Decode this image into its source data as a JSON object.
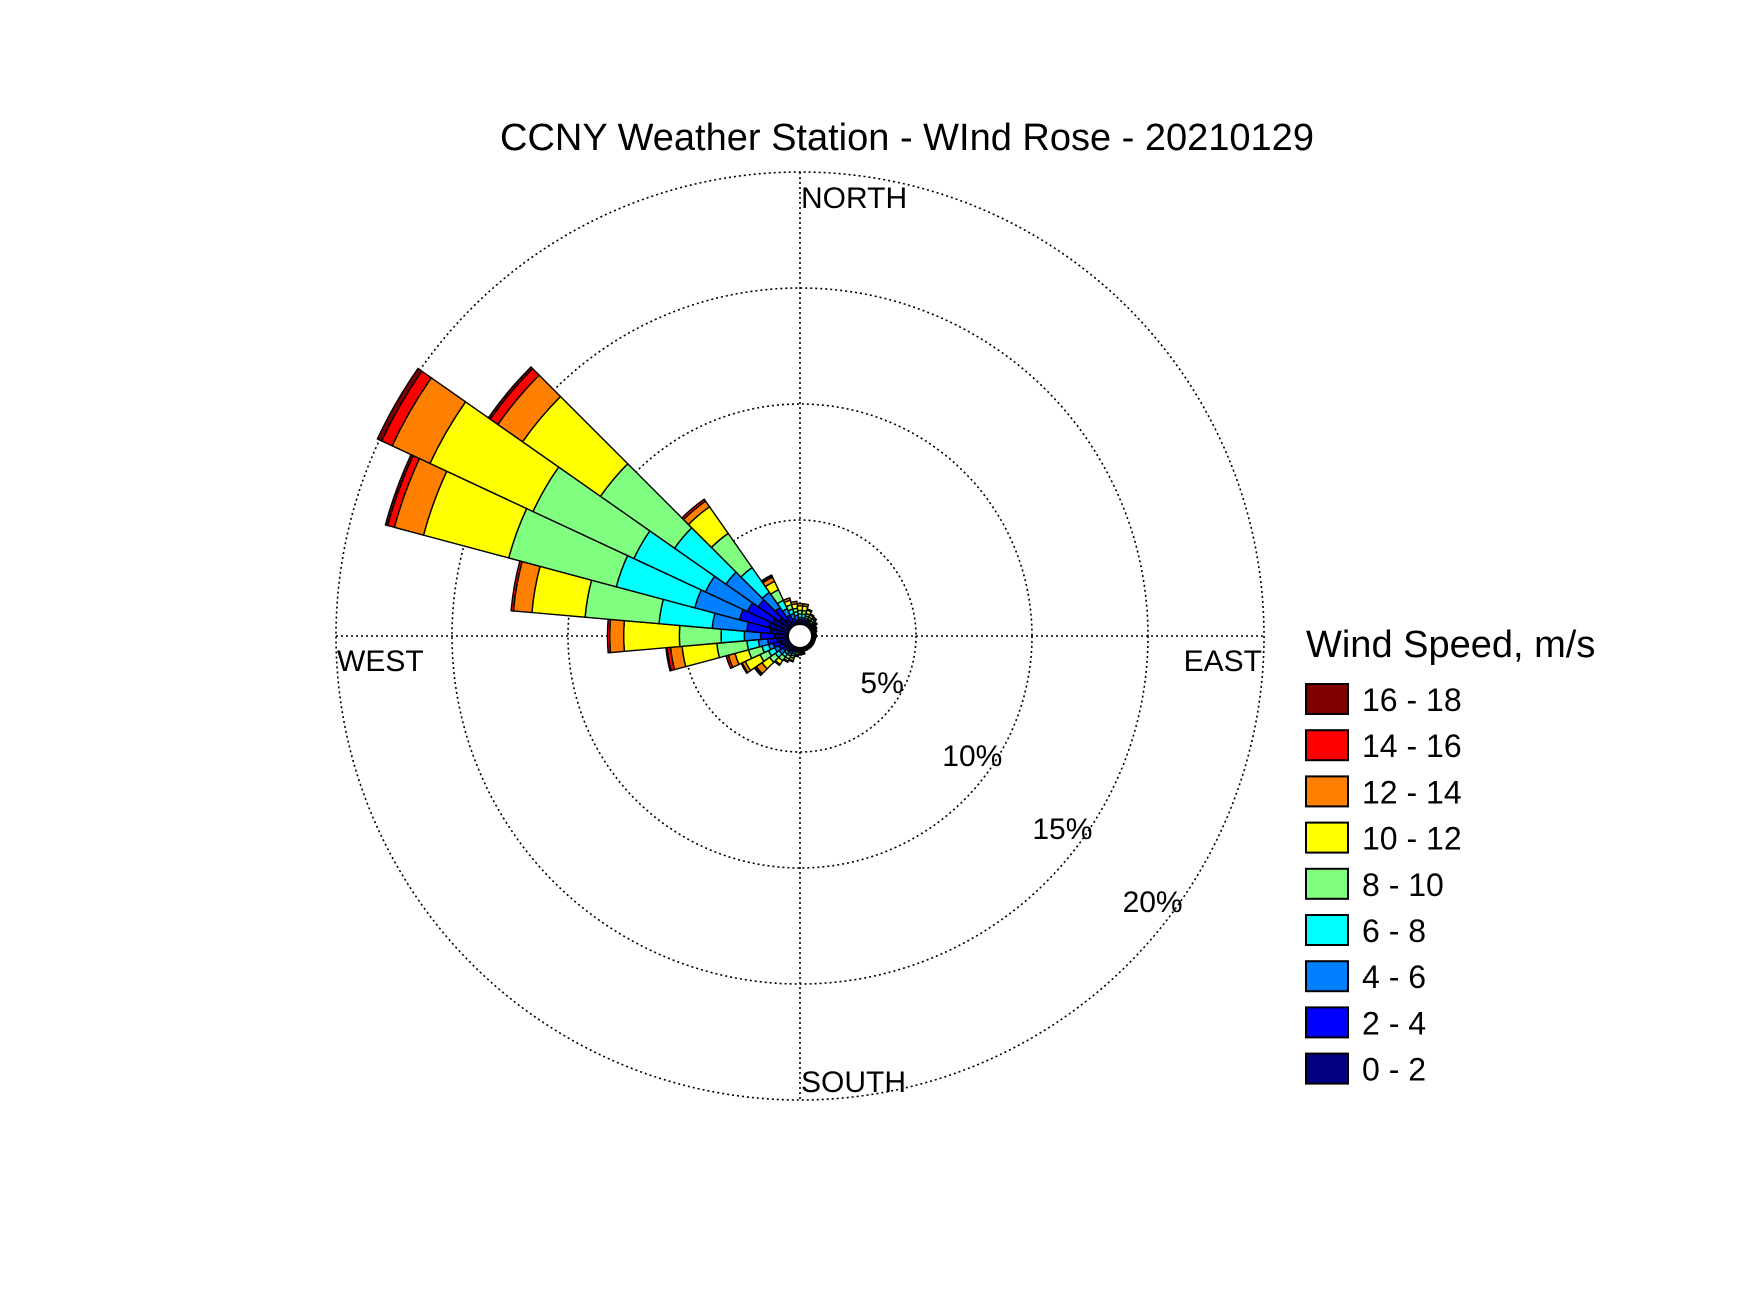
{
  "chart_data": {
    "type": "windrose",
    "title": "CCNY Weather Station - WInd Rose - 20210129",
    "direction_labels": {
      "north": "NORTH",
      "south": "SOUTH",
      "east": "EAST",
      "west": "WEST"
    },
    "radial_axis": {
      "unit": "%",
      "ticks": [
        5,
        10,
        15,
        20
      ],
      "tick_labels": [
        "5%",
        "10%",
        "15%",
        "20%"
      ],
      "max": 20
    },
    "legend": {
      "title": "Wind Speed, m/s",
      "placement": "right",
      "bins": [
        {
          "label": "16 - 18",
          "color": "#800000"
        },
        {
          "label": "14 - 16",
          "color": "#ff0000"
        },
        {
          "label": "12 - 14",
          "color": "#ff8000"
        },
        {
          "label": "10 - 12",
          "color": "#ffff00"
        },
        {
          "label": "8 - 10",
          "color": "#80ff80"
        },
        {
          "label": "6 - 8",
          "color": "#00ffff"
        },
        {
          "label": "4 - 6",
          "color": "#0080ff"
        },
        {
          "label": "2 - 4",
          "color": "#0000ff"
        },
        {
          "label": "0 - 2",
          "color": "#000080"
        }
      ]
    },
    "speed_bin_order": [
      "0 - 2",
      "2 - 4",
      "4 - 6",
      "6 - 8",
      "8 - 10",
      "10 - 12",
      "12 - 14",
      "14 - 16",
      "16 - 18"
    ],
    "sector_width_deg": 10,
    "inner_calm_radius_pct": 0.5,
    "directions": [
      {
        "dir": 250,
        "cum": [
          0.9,
          1.2,
          1.4,
          1.7,
          2.3,
          2.9,
          3.2,
          3.3,
          3.3
        ]
      },
      {
        "dir": 260,
        "cum": [
          1.0,
          1.4,
          1.8,
          2.3,
          3.6,
          5.1,
          5.6,
          5.75,
          5.8
        ]
      },
      {
        "dir": 270,
        "cum": [
          1.1,
          1.7,
          2.4,
          3.4,
          5.2,
          7.6,
          8.2,
          8.3,
          8.3
        ]
      },
      {
        "dir": 280,
        "cum": [
          1.3,
          2.3,
          3.8,
          6.1,
          9.3,
          11.6,
          12.4,
          12.5,
          12.5
        ]
      },
      {
        "dir": 290,
        "cum": [
          1.4,
          2.7,
          4.7,
          8.2,
          13.0,
          16.8,
          18.1,
          18.4,
          18.5
        ]
      },
      {
        "dir": 300,
        "cum": [
          1.3,
          2.5,
          4.5,
          7.9,
          12.7,
          17.6,
          19.4,
          19.9,
          20.1
        ]
      },
      {
        "dir": 310,
        "cum": [
          1.1,
          2.2,
          3.9,
          6.6,
          10.5,
          14.6,
          15.9,
          16.3,
          16.4
        ]
      },
      {
        "dir": 320,
        "cum": [
          0.9,
          1.5,
          2.3,
          3.6,
          5.4,
          6.8,
          7.1,
          7.2,
          7.2
        ]
      },
      {
        "dir": 330,
        "cum": [
          0.7,
          1.0,
          1.3,
          1.7,
          2.2,
          2.6,
          2.8,
          2.85,
          2.9
        ]
      },
      {
        "dir": 340,
        "cum": [
          0.6,
          0.8,
          1.0,
          1.2,
          1.4,
          1.6,
          1.7,
          1.7,
          1.7
        ]
      },
      {
        "dir": 350,
        "cum": [
          0.6,
          0.7,
          0.9,
          1.05,
          1.2,
          1.4,
          1.5,
          1.5,
          1.5
        ]
      },
      {
        "dir": 0,
        "cum": [
          0.6,
          0.7,
          0.8,
          0.95,
          1.1,
          1.3,
          1.4,
          1.4,
          1.4
        ]
      },
      {
        "dir": 10,
        "cum": [
          0.6,
          0.7,
          0.8,
          0.95,
          1.1,
          1.3,
          1.4,
          1.4,
          1.4
        ]
      },
      {
        "dir": 20,
        "cum": [
          0.6,
          0.7,
          0.8,
          0.9,
          1.0,
          1.15,
          1.2,
          1.2,
          1.2
        ]
      },
      {
        "dir": 30,
        "cum": [
          0.6,
          0.7,
          0.75,
          0.8,
          0.9,
          1.0,
          1.05,
          1.05,
          1.05
        ]
      },
      {
        "dir": 40,
        "cum": [
          0.6,
          0.65,
          0.7,
          0.8,
          0.9,
          0.95,
          1.0,
          1.0,
          1.0
        ]
      },
      {
        "dir": 50,
        "cum": [
          0.6,
          0.65,
          0.7,
          0.75,
          0.8,
          0.85,
          0.9,
          0.9,
          0.9
        ]
      },
      {
        "dir": 60,
        "cum": [
          0.55,
          0.6,
          0.65,
          0.7,
          0.75,
          0.8,
          0.8,
          0.8,
          0.8
        ]
      },
      {
        "dir": 70,
        "cum": [
          0.55,
          0.6,
          0.65,
          0.7,
          0.72,
          0.75,
          0.75,
          0.75,
          0.75
        ]
      },
      {
        "dir": 80,
        "cum": [
          0.55,
          0.6,
          0.62,
          0.65,
          0.68,
          0.7,
          0.7,
          0.7,
          0.7
        ]
      },
      {
        "dir": 90,
        "cum": [
          0.55,
          0.6,
          0.62,
          0.65,
          0.68,
          0.7,
          0.7,
          0.7,
          0.7
        ]
      },
      {
        "dir": 100,
        "cum": [
          0.55,
          0.58,
          0.6,
          0.62,
          0.65,
          0.67,
          0.67,
          0.67,
          0.67
        ]
      },
      {
        "dir": 110,
        "cum": [
          0.55,
          0.58,
          0.6,
          0.62,
          0.65,
          0.67,
          0.67,
          0.67,
          0.67
        ]
      },
      {
        "dir": 120,
        "cum": [
          0.55,
          0.58,
          0.6,
          0.62,
          0.65,
          0.67,
          0.67,
          0.67,
          0.67
        ]
      },
      {
        "dir": 130,
        "cum": [
          0.55,
          0.58,
          0.6,
          0.62,
          0.65,
          0.67,
          0.67,
          0.67,
          0.67
        ]
      },
      {
        "dir": 140,
        "cum": [
          0.55,
          0.58,
          0.6,
          0.62,
          0.65,
          0.67,
          0.67,
          0.67,
          0.67
        ]
      },
      {
        "dir": 150,
        "cum": [
          0.55,
          0.58,
          0.6,
          0.62,
          0.65,
          0.67,
          0.67,
          0.67,
          0.67
        ]
      },
      {
        "dir": 160,
        "cum": [
          0.55,
          0.58,
          0.6,
          0.62,
          0.65,
          0.67,
          0.67,
          0.67,
          0.67
        ]
      },
      {
        "dir": 170,
        "cum": [
          0.55,
          0.6,
          0.65,
          0.7,
          0.75,
          0.8,
          0.8,
          0.8,
          0.8
        ]
      },
      {
        "dir": 180,
        "cum": [
          0.55,
          0.6,
          0.65,
          0.7,
          0.75,
          0.8,
          0.82,
          0.82,
          0.82
        ]
      },
      {
        "dir": 190,
        "cum": [
          0.55,
          0.6,
          0.65,
          0.7,
          0.8,
          0.85,
          0.9,
          0.9,
          0.9
        ]
      },
      {
        "dir": 200,
        "cum": [
          0.6,
          0.7,
          0.8,
          0.9,
          1.0,
          1.1,
          1.15,
          1.15,
          1.15
        ]
      },
      {
        "dir": 210,
        "cum": [
          0.65,
          0.75,
          0.85,
          0.95,
          1.1,
          1.2,
          1.25,
          1.25,
          1.25
        ]
      },
      {
        "dir": 220,
        "cum": [
          0.7,
          0.8,
          0.95,
          1.1,
          1.3,
          1.5,
          1.55,
          1.55,
          1.55
        ]
      },
      {
        "dir": 230,
        "cum": [
          0.75,
          0.9,
          1.1,
          1.3,
          1.6,
          2.0,
          2.3,
          2.35,
          2.4
        ]
      },
      {
        "dir": 240,
        "cum": [
          0.8,
          1.0,
          1.2,
          1.5,
          1.9,
          2.6,
          2.75,
          2.8,
          2.8
        ]
      }
    ]
  }
}
